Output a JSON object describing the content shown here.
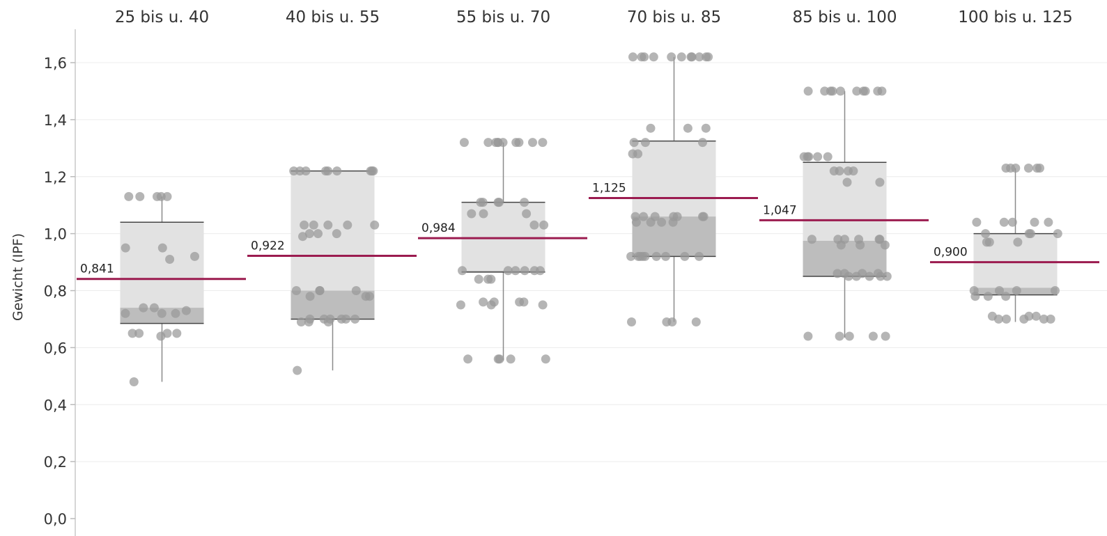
{
  "chart_data": {
    "type": "box",
    "categories": [
      "25 bis u. 40",
      "40 bis u. 55",
      "55 bis u. 70",
      "70 bis u. 85",
      "85 bis u. 100",
      "100 bis u. 125"
    ],
    "ylabel": "Gewicht (IPF)",
    "xlabel": "",
    "ylim": [
      0,
      1.65
    ],
    "yticks": [
      0.0,
      0.2,
      0.4,
      0.6,
      0.8,
      1.0,
      1.2,
      1.4,
      1.6
    ],
    "ytick_labels": [
      "0,0",
      "0,2",
      "0,4",
      "0,6",
      "0,8",
      "1,0",
      "1,2",
      "1,4",
      "1,6"
    ],
    "grid": "horizontal",
    "mean_color": "#9b1b4f",
    "box_color": "#e2e2e2",
    "box_lower_color": "#bdbdbd",
    "point_color": "#999999",
    "boxes": [
      {
        "category": "25 bis u. 40",
        "min": 0.48,
        "q1": 0.685,
        "median": 0.74,
        "q3": 1.04,
        "max": 1.13,
        "mean": 0.841,
        "mean_label": "0,841",
        "points": [
          1.13,
          1.13,
          1.13,
          1.13,
          1.13,
          0.95,
          0.95,
          0.92,
          0.91,
          0.74,
          0.74,
          0.73,
          0.72,
          0.72,
          0.72,
          0.65,
          0.65,
          0.65,
          0.65,
          0.64,
          0.48
        ]
      },
      {
        "category": "40 bis u. 55",
        "min": 0.52,
        "q1": 0.7,
        "median": 0.8,
        "q3": 1.22,
        "max": 1.22,
        "mean": 0.922,
        "mean_label": "0,922",
        "points": [
          1.22,
          1.22,
          1.22,
          1.22,
          1.22,
          1.22,
          1.22,
          1.22,
          1.22,
          1.03,
          1.03,
          1.03,
          1.03,
          1.03,
          1.0,
          1.0,
          1.0,
          0.99,
          0.8,
          0.8,
          0.8,
          0.8,
          0.78,
          0.78,
          0.78,
          0.7,
          0.7,
          0.7,
          0.7,
          0.7,
          0.7,
          0.69,
          0.69,
          0.69,
          0.52
        ]
      },
      {
        "category": "55 bis u. 70",
        "min": 0.555,
        "q1": 0.865,
        "median": 0.87,
        "q3": 1.11,
        "max": 1.32,
        "mean": 0.984,
        "mean_label": "0,984",
        "points": [
          1.32,
          1.32,
          1.32,
          1.32,
          1.32,
          1.32,
          1.32,
          1.32,
          1.32,
          1.32,
          1.11,
          1.11,
          1.11,
          1.11,
          1.11,
          1.07,
          1.07,
          1.07,
          1.03,
          1.03,
          0.87,
          0.87,
          0.87,
          0.87,
          0.87,
          0.87,
          0.84,
          0.84,
          0.84,
          0.76,
          0.76,
          0.76,
          0.76,
          0.75,
          0.75,
          0.75,
          0.56,
          0.56,
          0.56,
          0.56,
          0.56
        ]
      },
      {
        "category": "70 bis u. 85",
        "min": 0.69,
        "q1": 0.92,
        "median": 1.06,
        "q3": 1.325,
        "max": 1.62,
        "mean": 1.125,
        "mean_label": "1,125",
        "points": [
          1.62,
          1.62,
          1.62,
          1.62,
          1.62,
          1.62,
          1.62,
          1.62,
          1.62,
          1.62,
          1.62,
          1.37,
          1.37,
          1.37,
          1.32,
          1.32,
          1.32,
          1.28,
          1.28,
          1.06,
          1.06,
          1.06,
          1.06,
          1.06,
          1.06,
          1.06,
          1.04,
          1.04,
          1.04,
          1.04,
          0.92,
          0.92,
          0.92,
          0.92,
          0.92,
          0.92,
          0.92,
          0.92,
          0.92,
          0.69,
          0.69,
          0.69,
          0.69
        ]
      },
      {
        "category": "85 bis u. 100",
        "min": 0.635,
        "q1": 0.85,
        "median": 0.975,
        "q3": 1.25,
        "max": 1.5,
        "mean": 1.047,
        "mean_label": "1,047",
        "points": [
          1.5,
          1.5,
          1.5,
          1.5,
          1.5,
          1.5,
          1.5,
          1.5,
          1.5,
          1.5,
          1.27,
          1.27,
          1.27,
          1.27,
          1.27,
          1.22,
          1.22,
          1.22,
          1.22,
          1.18,
          1.18,
          0.98,
          0.98,
          0.98,
          0.98,
          0.98,
          0.98,
          0.96,
          0.96,
          0.96,
          0.86,
          0.86,
          0.86,
          0.86,
          0.85,
          0.85,
          0.85,
          0.85,
          0.85,
          0.64,
          0.64,
          0.64,
          0.64,
          0.64
        ]
      },
      {
        "category": "100 bis u. 125",
        "min": 0.69,
        "q1": 0.785,
        "median": 0.81,
        "q3": 1.0,
        "max": 1.23,
        "mean": 0.9,
        "mean_label": "0,900",
        "points": [
          1.23,
          1.23,
          1.23,
          1.23,
          1.23,
          1.23,
          1.04,
          1.04,
          1.04,
          1.04,
          1.04,
          1.0,
          1.0,
          1.0,
          1.0,
          0.97,
          0.97,
          0.97,
          0.8,
          0.8,
          0.8,
          0.8,
          0.78,
          0.78,
          0.78,
          0.71,
          0.71,
          0.71,
          0.7,
          0.7,
          0.7,
          0.7,
          0.7
        ]
      }
    ]
  }
}
